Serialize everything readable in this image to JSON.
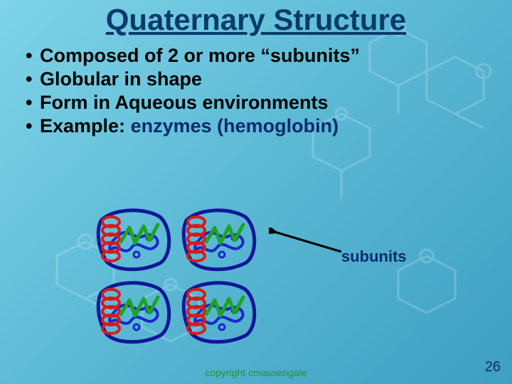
{
  "title": {
    "text": "Quaternary Structure",
    "color": "#0a3a6b",
    "fontsize": 42
  },
  "bullets": {
    "items": [
      "Composed of 2 or more “subunits”",
      "Globular in shape",
      "Form in Aqueous environments"
    ],
    "example_prefix": "Example: ",
    "example_emph": "enzymes (hemoglobin)",
    "text_color": "#000000",
    "emph_color": "#0a2b6b",
    "fontsize": 27
  },
  "diagram": {
    "type": "infographic",
    "subunit_count": 4,
    "layout": "2x2",
    "colors": {
      "squiggle": "#1a28c9",
      "helix": "#d91a1a",
      "zigzag": "#1fa31f",
      "outline": "#101698"
    },
    "stroke_width_squiggle": 5,
    "stroke_width_helix": 4,
    "stroke_width_zigzag": 5
  },
  "label": {
    "text": "subunits",
    "color": "#0a2b6b",
    "fontsize": 22
  },
  "arrow": {
    "color": "#000000",
    "stroke_width": 3
  },
  "copyright": {
    "text": "copyright cmassengale",
    "color": "#2a8f2a",
    "fontsize": 14
  },
  "page": {
    "number": "26",
    "color": "#0a2b6b",
    "fontsize": 20
  },
  "background": {
    "gradient_from": "#7fd4e8",
    "gradient_to": "#3e9fc2",
    "molecule_stroke": "#e8f7fb",
    "molecule_opacity": 0.22
  }
}
